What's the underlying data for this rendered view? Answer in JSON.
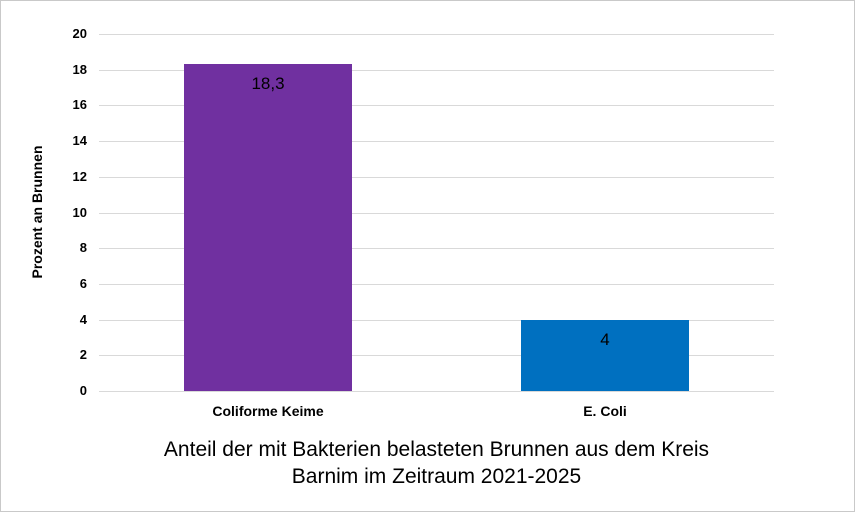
{
  "chart_data": {
    "type": "bar",
    "categories": [
      "Coliforme Keime",
      "E. Coli"
    ],
    "values": [
      18.3,
      4
    ],
    "value_labels": [
      "18,3",
      "4"
    ],
    "bar_colors": [
      "#7030a0",
      "#0070c0"
    ],
    "title": "Anteil der mit Bakterien belasteten Brunnen aus dem Kreis Barnim im Zeitraum 2021-2025",
    "title_lines": [
      "Anteil der mit Bakterien belasteten Brunnen aus dem Kreis",
      "Barnim im Zeitraum 2021-2025"
    ],
    "title_position": "bottom",
    "xlabel": "",
    "ylabel": "Prozent an Brunnen",
    "ylim": [
      0,
      20
    ],
    "yticks": [
      0,
      2,
      4,
      6,
      8,
      10,
      12,
      14,
      16,
      18,
      20
    ],
    "grid": "horizontal",
    "gridline_color": "#d9d9d9",
    "legend": "none",
    "value_label_position": "inside-end",
    "value_label_color": "#000000",
    "background_color": "#ffffff",
    "border_color": "#c9c9c9"
  }
}
